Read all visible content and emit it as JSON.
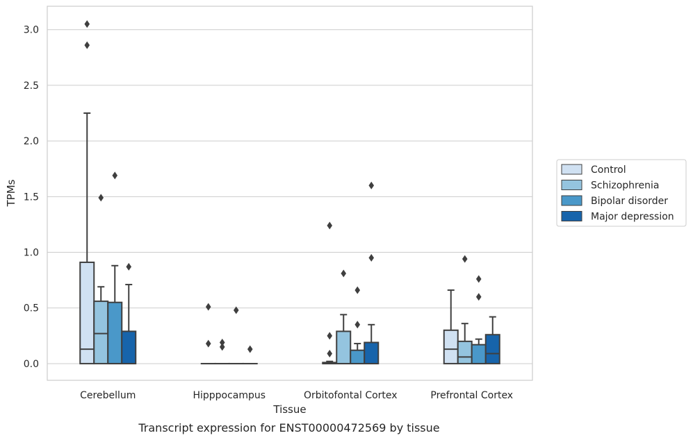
{
  "chart_data": {
    "type": "box",
    "xlabel": "Tissue",
    "ylabel": "TPMs",
    "caption": "Transcript expression for ENST00000472569 by tissue",
    "ylim": [
      -0.15,
      3.21
    ],
    "yticks": [
      "0.0",
      "0.5",
      "1.0",
      "1.5",
      "2.0",
      "2.5",
      "3.0"
    ],
    "ytick_values": [
      0.0,
      0.5,
      1.0,
      1.5,
      2.0,
      2.5,
      3.0
    ],
    "grid": "horizontal",
    "legend_position": "right",
    "categories": [
      "Cerebellum",
      "Hipppocampus",
      "Orbitofontal Cortex",
      "Prefrontal Cortex"
    ],
    "series": [
      {
        "name": "Control",
        "color": "#d0e1f2",
        "boxes": [
          {
            "q1": 0.0,
            "median": 0.13,
            "q3": 0.91,
            "whisker_low": 0.0,
            "whisker_high": 2.25,
            "outliers": [
              2.86,
              3.05
            ]
          },
          {
            "q1": 0.0,
            "median": 0.0,
            "q3": 0.0,
            "whisker_low": 0.0,
            "whisker_high": 0.0,
            "outliers": [
              0.18,
              0.51
            ]
          },
          {
            "q1": 0.0,
            "median": 0.0,
            "q3": 0.01,
            "whisker_low": 0.0,
            "whisker_high": 0.02,
            "outliers": [
              0.09,
              0.25,
              1.24
            ]
          },
          {
            "q1": 0.0,
            "median": 0.13,
            "q3": 0.3,
            "whisker_low": 0.0,
            "whisker_high": 0.66,
            "outliers": []
          }
        ]
      },
      {
        "name": "Schizophrenia",
        "color": "#94c4df",
        "boxes": [
          {
            "q1": 0.0,
            "median": 0.27,
            "q3": 0.56,
            "whisker_low": 0.0,
            "whisker_high": 0.69,
            "outliers": [
              1.49
            ]
          },
          {
            "q1": 0.0,
            "median": 0.0,
            "q3": 0.0,
            "whisker_low": 0.0,
            "whisker_high": 0.0,
            "outliers": [
              0.15,
              0.19
            ]
          },
          {
            "q1": 0.0,
            "median": 0.0,
            "q3": 0.29,
            "whisker_low": 0.0,
            "whisker_high": 0.44,
            "outliers": [
              0.81
            ]
          },
          {
            "q1": 0.0,
            "median": 0.06,
            "q3": 0.2,
            "whisker_low": 0.0,
            "whisker_high": 0.36,
            "outliers": [
              0.94
            ]
          }
        ]
      },
      {
        "name": "Bipolar disorder",
        "color": "#4a98c9",
        "boxes": [
          {
            "q1": 0.0,
            "median": 0.0,
            "q3": 0.55,
            "whisker_low": 0.0,
            "whisker_high": 0.88,
            "outliers": [
              1.69
            ]
          },
          {
            "q1": 0.0,
            "median": 0.0,
            "q3": 0.0,
            "whisker_low": 0.0,
            "whisker_high": 0.0,
            "outliers": [
              0.48
            ]
          },
          {
            "q1": 0.0,
            "median": 0.0,
            "q3": 0.12,
            "whisker_low": 0.0,
            "whisker_high": 0.18,
            "outliers": [
              0.35,
              0.66
            ]
          },
          {
            "q1": 0.0,
            "median": 0.0,
            "q3": 0.17,
            "whisker_low": 0.0,
            "whisker_high": 0.22,
            "outliers": [
              0.6,
              0.76
            ]
          }
        ]
      },
      {
        "name": "Major depression",
        "color": "#1764ab",
        "boxes": [
          {
            "q1": 0.0,
            "median": 0.0,
            "q3": 0.29,
            "whisker_low": 0.0,
            "whisker_high": 0.71,
            "outliers": [
              0.87
            ]
          },
          {
            "q1": 0.0,
            "median": 0.0,
            "q3": 0.0,
            "whisker_low": 0.0,
            "whisker_high": 0.0,
            "outliers": [
              0.13
            ]
          },
          {
            "q1": 0.0,
            "median": 0.0,
            "q3": 0.19,
            "whisker_low": 0.0,
            "whisker_high": 0.35,
            "outliers": [
              0.95,
              1.6
            ]
          },
          {
            "q1": 0.0,
            "median": 0.09,
            "q3": 0.26,
            "whisker_low": 0.0,
            "whisker_high": 0.42,
            "outliers": []
          }
        ]
      }
    ]
  },
  "colors": {
    "edge": "#3f3f3f",
    "grid": "#cccccc",
    "frame": "#cccccc",
    "text": "#262626"
  }
}
